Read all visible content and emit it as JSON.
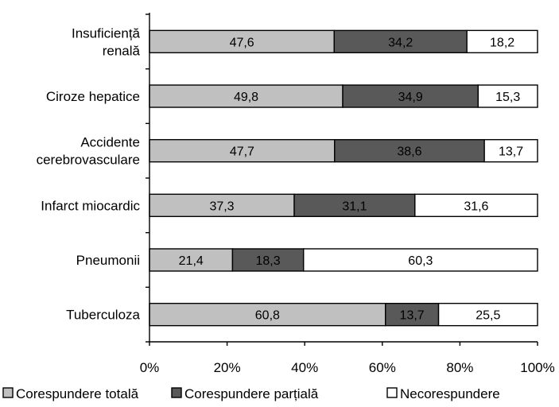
{
  "chart_data": {
    "type": "bar",
    "orientation": "horizontal",
    "stacked": true,
    "percent_stacked": true,
    "categories": [
      "Insuficiență renală",
      "Ciroze hepatice",
      "Accidente cerebrovasculare",
      "Infarct miocardic",
      "Pneumonii",
      "Tuberculoza"
    ],
    "category_lines": [
      [
        "Insuficiență",
        "renală"
      ],
      [
        "Ciroze hepatice"
      ],
      [
        "Accidente",
        "cerebrovasculare"
      ],
      [
        "Infarct miocardic"
      ],
      [
        "Pneumonii"
      ],
      [
        "Tuberculoza"
      ]
    ],
    "series": [
      {
        "name": "Corespundere totală",
        "color": "#c0c0c0",
        "values": [
          47.6,
          49.8,
          47.7,
          37.3,
          21.4,
          60.8
        ],
        "labels": [
          "47,6",
          "49,8",
          "47,7",
          "37,3",
          "21,4",
          "60,8"
        ]
      },
      {
        "name": "Corespundere parțială",
        "color": "#595959",
        "values": [
          34.2,
          34.9,
          38.6,
          31.1,
          18.3,
          13.7
        ],
        "labels": [
          "34,2",
          "34,9",
          "38,6",
          "31,1",
          "18,3",
          "13,7"
        ]
      },
      {
        "name": "Necorespundere",
        "color": "#ffffff",
        "values": [
          18.2,
          15.3,
          13.7,
          31.6,
          60.3,
          25.5
        ],
        "labels": [
          "18,2",
          "15,3",
          "13,7",
          "31,6",
          "60,3",
          "25,5"
        ]
      }
    ],
    "x_ticks": [
      "0%",
      "20%",
      "40%",
      "60%",
      "80%",
      "100%"
    ],
    "xlim": [
      0,
      100
    ],
    "grid": "none",
    "legend_position": "bottom",
    "title": "",
    "xlabel": "",
    "ylabel": ""
  }
}
